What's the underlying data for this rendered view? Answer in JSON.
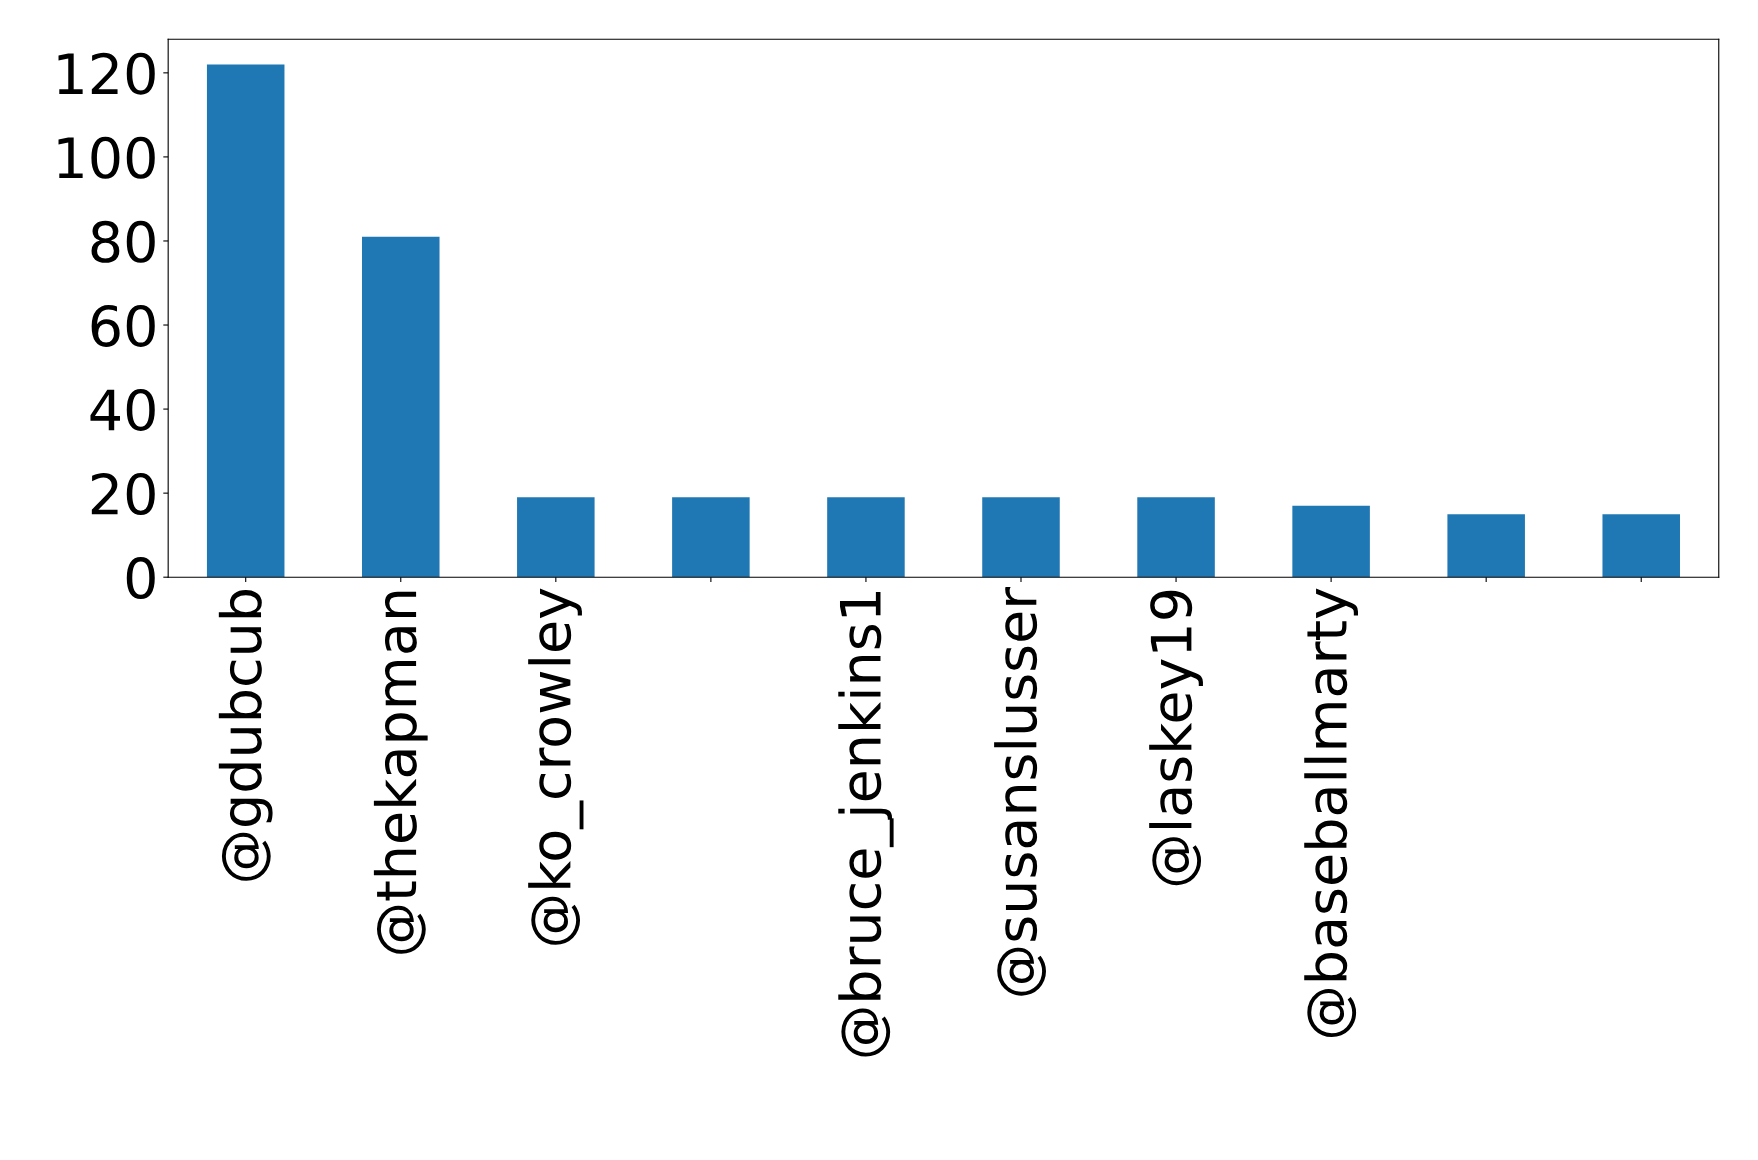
{
  "chart_data": {
    "type": "bar",
    "categories": [
      "@gdubcub",
      "@thekapman",
      "@ko_crowley",
      null,
      "@bruce_jenkins1",
      "@susanslusser",
      "@laskey19",
      "@baseballmarty",
      null,
      null
    ],
    "values": [
      122,
      81,
      19,
      19,
      19,
      19,
      19,
      17,
      15,
      15
    ],
    "color": "#1f77b4",
    "ylim": [
      0,
      128
    ],
    "yticks": [
      0,
      20,
      40,
      60,
      80,
      100,
      120
    ],
    "grid": false,
    "legend": false
  }
}
